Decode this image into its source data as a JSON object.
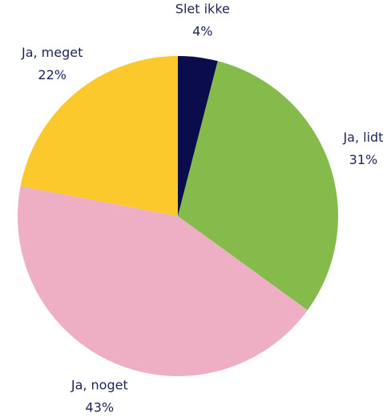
{
  "chart_data": {
    "type": "pie",
    "categories": [
      "Slet ikke",
      "Ja, lidt",
      "Ja, noget",
      "Ja, meget"
    ],
    "values": [
      4,
      31,
      43,
      22
    ],
    "value_labels": [
      "4%",
      "31%",
      "43%",
      "22%"
    ],
    "colors": [
      "#0b0c4b",
      "#84bb4b",
      "#eeafc4",
      "#fbc92c"
    ]
  }
}
